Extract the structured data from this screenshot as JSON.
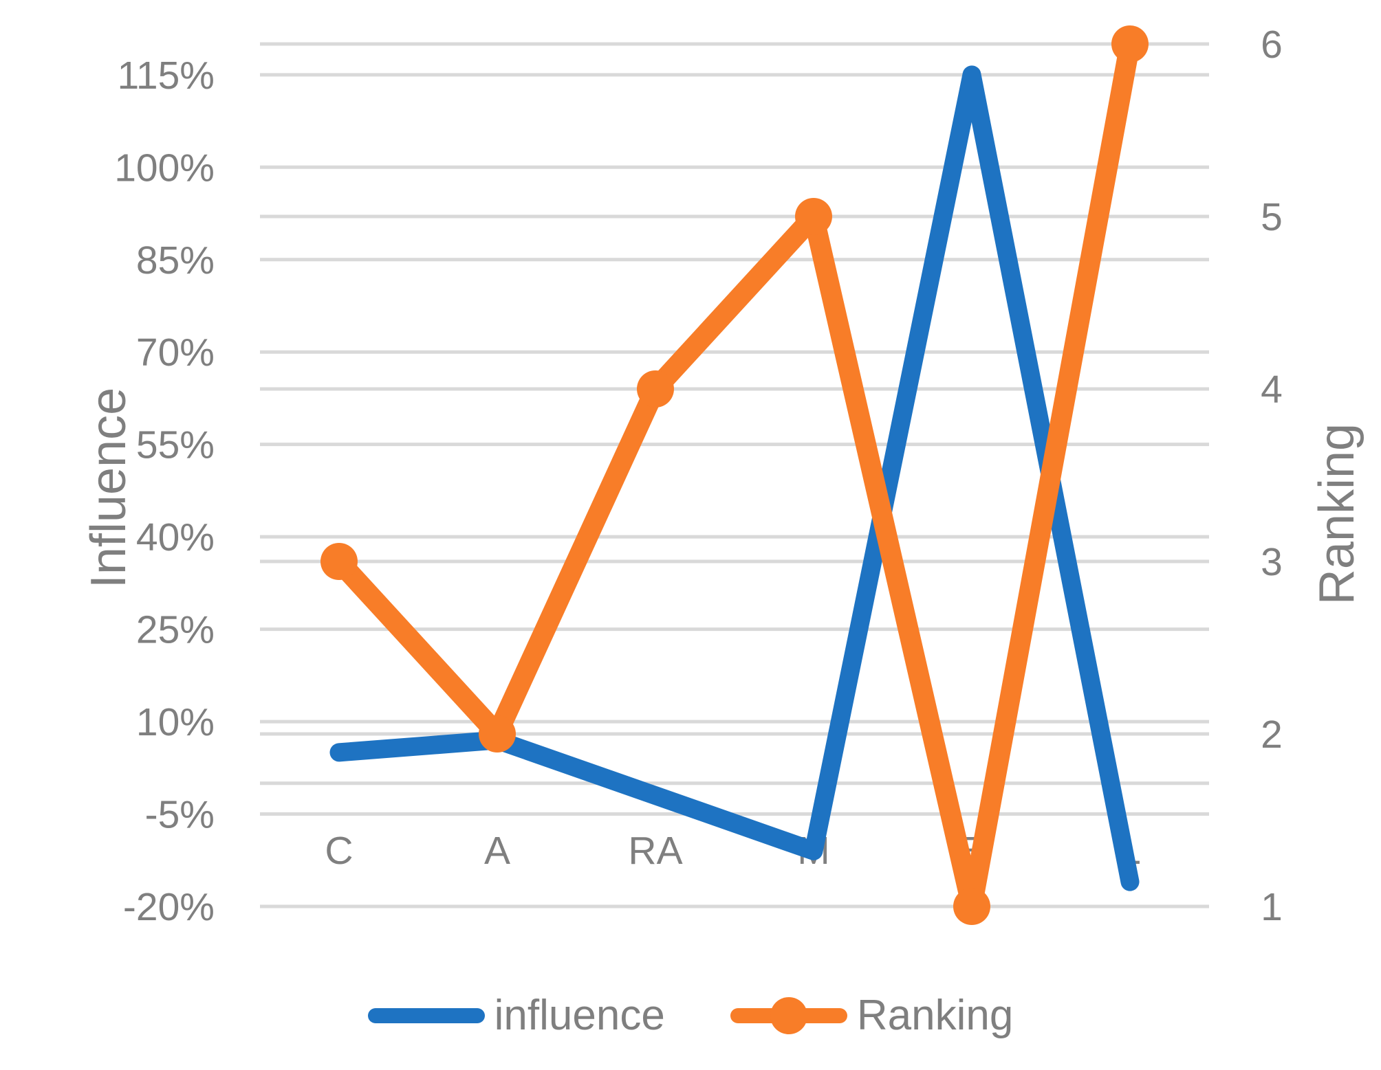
{
  "chart_data": {
    "type": "line",
    "categories": [
      "C",
      "A",
      "RA",
      "M",
      "E",
      "L"
    ],
    "series": [
      {
        "name": "influence",
        "axis": "left",
        "color": "#1e73c2",
        "marker": false,
        "values": [
          5,
          7,
          -2,
          -11,
          115,
          -16
        ],
        "unit": "%"
      },
      {
        "name": "Ranking",
        "axis": "right",
        "color": "#f87d28",
        "marker": true,
        "values": [
          3,
          2,
          4,
          5,
          1,
          6
        ]
      }
    ],
    "left_axis": {
      "title": "Influence",
      "tick_labels": [
        "115%",
        "100%",
        "85%",
        "70%",
        "55%",
        "40%",
        "25%",
        "10%",
        "-5%",
        "-20%"
      ],
      "tick_values": [
        115,
        100,
        85,
        70,
        55,
        40,
        25,
        10,
        -5,
        -20
      ],
      "min": -20,
      "max": 120,
      "zero_line": 0
    },
    "right_axis": {
      "title": "Ranking",
      "tick_labels": [
        "6",
        "5",
        "4",
        "3",
        "2",
        "1"
      ],
      "tick_values": [
        6,
        5,
        4,
        3,
        2,
        1
      ],
      "min": 1,
      "max": 6
    },
    "legend_labels": [
      "influence",
      "Ranking"
    ],
    "grid": true,
    "legend_position": "bottom",
    "colors": {
      "gridline": "#d9d9d9",
      "text": "#7f7f7f",
      "background": "#ffffff"
    }
  }
}
